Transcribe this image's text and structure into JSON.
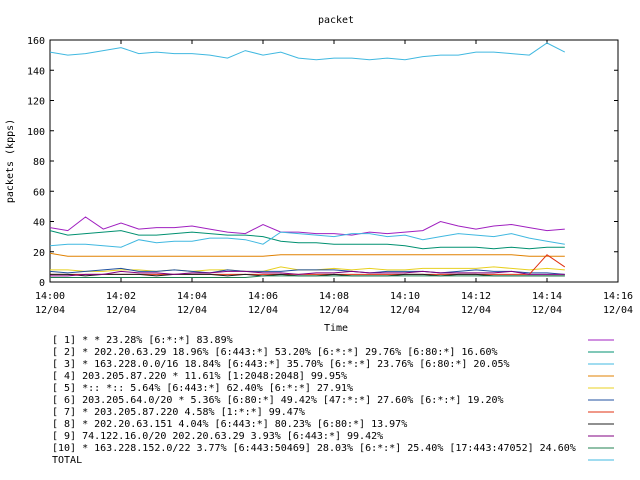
{
  "chart_data": {
    "type": "line",
    "title": "packet",
    "xlabel": "Time",
    "ylabel": "packets (kpps)",
    "xlim": [
      0,
      16
    ],
    "ylim": [
      0,
      160
    ],
    "yticks": [
      0,
      20,
      40,
      60,
      80,
      100,
      120,
      140,
      160
    ],
    "xticks": [
      {
        "v": 0,
        "l1": "14:00",
        "l2": "12/04"
      },
      {
        "v": 2,
        "l1": "14:02",
        "l2": "12/04"
      },
      {
        "v": 4,
        "l1": "14:04",
        "l2": "12/04"
      },
      {
        "v": 6,
        "l1": "14:06",
        "l2": "12/04"
      },
      {
        "v": 8,
        "l1": "14:08",
        "l2": "12/04"
      },
      {
        "v": 10,
        "l1": "14:10",
        "l2": "12/04"
      },
      {
        "v": 12,
        "l1": "14:12",
        "l2": "12/04"
      },
      {
        "v": 14,
        "l1": "14:14",
        "l2": "12/04"
      },
      {
        "v": 16,
        "l1": "14:16",
        "l2": "12/04"
      }
    ],
    "x": [
      0,
      0.5,
      1,
      1.5,
      2,
      2.5,
      3,
      3.5,
      4,
      4.5,
      5,
      5.5,
      6,
      6.5,
      7,
      7.5,
      8,
      8.5,
      9,
      9.5,
      10,
      10.5,
      11,
      11.5,
      12,
      12.5,
      13,
      13.5,
      14,
      14.5
    ],
    "series": [
      {
        "name": "[ 1] * * 23.28%  [6:*:*] 83.89%",
        "color": "#a020c0",
        "values": [
          36,
          34,
          43,
          35,
          39,
          35,
          36,
          36,
          37,
          35,
          33,
          32,
          38,
          33,
          33,
          32,
          32,
          31,
          33,
          32,
          33,
          34,
          40,
          37,
          35,
          37,
          38,
          36,
          34,
          35
        ]
      },
      {
        "name": "[ 2] * 202.20.63.29 18.96%  [6:443:*] 53.20% [6:*:*] 29.76% [6:80:*] 16.60%",
        "color": "#009070",
        "values": [
          34,
          31,
          32,
          33,
          34,
          31,
          31,
          32,
          33,
          32,
          31,
          31,
          30,
          27,
          26,
          26,
          25,
          25,
          25,
          25,
          24,
          22,
          23,
          23,
          23,
          22,
          23,
          22,
          23,
          23
        ]
      },
      {
        "name": "[ 3] * 163.228.0.0/16 18.84%  [6:443:*] 35.70% [6:*:*] 23.76% [6:80:*] 20.05%",
        "color": "#40b8e0",
        "values": [
          24,
          25,
          25,
          24,
          23,
          28,
          26,
          27,
          27,
          29,
          29,
          28,
          25,
          33,
          32,
          31,
          30,
          32,
          32,
          30,
          31,
          28,
          30,
          32,
          31,
          30,
          32,
          29,
          27,
          25
        ]
      },
      {
        "name": "[ 4] 203.205.87.220 * 11.61%  [1:2048:2048] 99.95%",
        "color": "#e08000",
        "values": [
          19,
          17,
          17,
          17,
          17,
          17,
          17,
          17,
          17,
          17,
          17,
          17,
          17,
          18,
          18,
          18,
          18,
          18,
          18,
          18,
          18,
          18,
          18,
          18,
          18,
          18,
          18,
          17,
          17,
          17
        ]
      },
      {
        "name": "[ 5] *:: *:: 5.64%  [6:443:*] 62.40% [6:*:*] 27.91%",
        "color": "#e8d020",
        "values": [
          8,
          8,
          7,
          7,
          8,
          8,
          7,
          8,
          7,
          8,
          8,
          7,
          7,
          10,
          8,
          8,
          9,
          8,
          9,
          8,
          8,
          9,
          9,
          9,
          9,
          10,
          9,
          8,
          9,
          8
        ]
      },
      {
        "name": "[ 6] 203.205.64.0/20 * 5.36%  [6:80:*] 49.42% [47:*:*] 27.60% [6:*:*] 19.20%",
        "color": "#2050a0",
        "values": [
          7,
          6,
          7,
          8,
          9,
          7,
          7,
          8,
          7,
          6,
          8,
          7,
          7,
          7,
          8,
          8,
          8,
          7,
          6,
          7,
          7,
          7,
          6,
          7,
          8,
          7,
          7,
          6,
          6,
          5
        ]
      },
      {
        "name": "[ 7] * 203.205.87.220 4.58%  [1:*:*] 99.47%",
        "color": "#e03010",
        "values": [
          5,
          5,
          5,
          5,
          5,
          5,
          5,
          5,
          5,
          5,
          5,
          5,
          5,
          5,
          5,
          5,
          5,
          5,
          5,
          5,
          5,
          5,
          5,
          5,
          5,
          5,
          5,
          5,
          18,
          10
        ]
      },
      {
        "name": "[ 8] * 202.20.63.151 4.04%  [6:443:*] 80.23% [6:80:*] 13.97%",
        "color": "#202020",
        "values": [
          5,
          5,
          4,
          5,
          5,
          5,
          4,
          5,
          5,
          5,
          4,
          5,
          4,
          5,
          4,
          4,
          5,
          4,
          4,
          4,
          5,
          5,
          4,
          5,
          5,
          4,
          4,
          4,
          4,
          4
        ]
      },
      {
        "name": "[ 9] 74.122.16.0/20 202.20.63.29 3.93%  [6:443:*] 99.42%",
        "color": "#800080",
        "values": [
          4,
          4,
          5,
          5,
          7,
          6,
          6,
          5,
          6,
          6,
          7,
          7,
          6,
          6,
          5,
          6,
          6,
          7,
          6,
          6,
          6,
          7,
          6,
          6,
          6,
          6,
          7,
          5,
          5,
          5
        ]
      },
      {
        "name": "[10] * 163.228.152.0/22 3.77%  [6:443:50469] 28.03% [6:*:*] 25.40% [17:443:47052] 24.60%",
        "color": "#208050",
        "values": [
          3,
          3,
          3,
          3,
          3,
          3,
          3,
          3,
          3,
          3,
          3,
          3,
          4,
          4,
          4,
          4,
          4,
          4,
          4,
          4,
          4,
          4,
          4,
          4,
          4,
          4,
          4,
          4,
          4,
          4
        ]
      },
      {
        "name": "TOTAL",
        "color": "#40b8e0",
        "values": [
          152,
          150,
          151,
          153,
          155,
          151,
          152,
          151,
          151,
          150,
          148,
          153,
          150,
          152,
          148,
          147,
          148,
          148,
          147,
          148,
          147,
          149,
          150,
          150,
          152,
          152,
          151,
          150,
          158,
          152
        ]
      }
    ]
  }
}
